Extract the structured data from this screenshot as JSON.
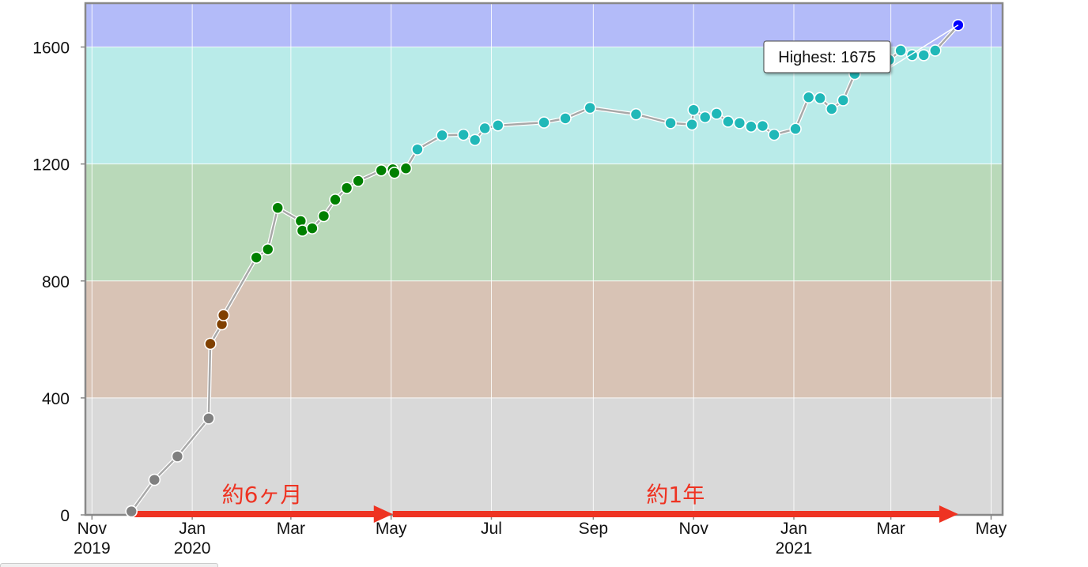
{
  "chart_data": {
    "type": "line",
    "y_ticks": [
      "0",
      "400",
      "800",
      "1200",
      "1600"
    ],
    "ylim": [
      0,
      1750
    ],
    "x_range": [
      "2019-10-28",
      "2021-05-08"
    ],
    "x_ticks": [
      {
        "date": "2019-11-01",
        "label1": "Nov",
        "label2": "2019"
      },
      {
        "date": "2020-01-01",
        "label1": "Jan",
        "label2": "2020"
      },
      {
        "date": "2020-03-01",
        "label1": "Mar",
        "label2": ""
      },
      {
        "date": "2020-05-01",
        "label1": "May",
        "label2": ""
      },
      {
        "date": "2020-07-01",
        "label1": "Jul",
        "label2": ""
      },
      {
        "date": "2020-09-01",
        "label1": "Sep",
        "label2": ""
      },
      {
        "date": "2020-11-01",
        "label1": "Nov",
        "label2": ""
      },
      {
        "date": "2021-01-01",
        "label1": "Jan",
        "label2": "2021"
      },
      {
        "date": "2021-03-01",
        "label1": "Mar",
        "label2": ""
      },
      {
        "date": "2021-05-01",
        "label1": "May",
        "label2": ""
      }
    ],
    "bands": [
      {
        "from": 0,
        "to": 400,
        "color": "#d9d9d9"
      },
      {
        "from": 400,
        "to": 800,
        "color": "#d8c3b5"
      },
      {
        "from": 800,
        "to": 1200,
        "color": "#b9d9b9"
      },
      {
        "from": 1200,
        "to": 1600,
        "color": "#b9ebe9"
      },
      {
        "from": 1600,
        "to": 1750,
        "color": "#b3bbf9"
      }
    ],
    "point_colors": [
      {
        "min": 0,
        "max": 400,
        "color": "#808080"
      },
      {
        "min": 400,
        "max": 800,
        "color": "#804000"
      },
      {
        "min": 800,
        "max": 1200,
        "color": "#008000"
      },
      {
        "min": 1200,
        "max": 1600,
        "color": "#20b8b8"
      },
      {
        "min": 1600,
        "max": 9999,
        "color": "#0000ff"
      }
    ],
    "series": [
      {
        "points": [
          [
            "2019-11-25",
            12
          ],
          [
            "2019-12-09",
            120
          ],
          [
            "2019-12-23",
            200
          ],
          [
            "2020-01-11",
            330
          ],
          [
            "2020-01-12",
            585
          ],
          [
            "2020-01-19",
            652
          ],
          [
            "2020-01-20",
            683
          ],
          [
            "2020-02-09",
            880
          ],
          [
            "2020-02-16",
            908
          ],
          [
            "2020-02-22",
            1050
          ],
          [
            "2020-03-07",
            1005
          ],
          [
            "2020-03-08",
            972
          ],
          [
            "2020-03-14",
            980
          ],
          [
            "2020-03-21",
            1022
          ],
          [
            "2020-03-28",
            1078
          ],
          [
            "2020-04-04",
            1118
          ],
          [
            "2020-04-11",
            1142
          ],
          [
            "2020-04-25",
            1178
          ],
          [
            "2020-05-02",
            1182
          ],
          [
            "2020-05-03",
            1170
          ],
          [
            "2020-05-10",
            1185
          ],
          [
            "2020-05-17",
            1250
          ],
          [
            "2020-06-01",
            1298
          ],
          [
            "2020-06-14",
            1300
          ],
          [
            "2020-06-21",
            1282
          ],
          [
            "2020-06-27",
            1322
          ],
          [
            "2020-07-05",
            1332
          ],
          [
            "2020-08-02",
            1342
          ],
          [
            "2020-08-15",
            1356
          ],
          [
            "2020-08-30",
            1392
          ],
          [
            "2020-09-27",
            1370
          ],
          [
            "2020-10-18",
            1340
          ],
          [
            "2020-10-31",
            1335
          ],
          [
            "2020-11-01",
            1385
          ],
          [
            "2020-11-08",
            1360
          ],
          [
            "2020-11-15",
            1372
          ],
          [
            "2020-11-22",
            1345
          ],
          [
            "2020-11-29",
            1340
          ],
          [
            "2020-12-06",
            1328
          ],
          [
            "2020-12-13",
            1330
          ],
          [
            "2020-12-20",
            1300
          ],
          [
            "2021-01-02",
            1320
          ],
          [
            "2021-01-10",
            1428
          ],
          [
            "2021-01-17",
            1425
          ],
          [
            "2021-01-24",
            1388
          ],
          [
            "2021-01-31",
            1418
          ],
          [
            "2021-02-07",
            1508
          ],
          [
            "2021-02-21",
            1570
          ],
          [
            "2021-02-28",
            1556
          ],
          [
            "2021-03-07",
            1588
          ],
          [
            "2021-03-14",
            1572
          ],
          [
            "2021-03-21",
            1572
          ],
          [
            "2021-03-28",
            1588
          ],
          [
            "2021-04-11",
            1675
          ]
        ]
      }
    ],
    "tooltip": {
      "label": "Highest: 1675",
      "date": "2021-04-11",
      "value": 1675
    },
    "annotations": [
      {
        "text": "約6ヶ月",
        "from": "2019-11-25",
        "to": "2020-05-02"
      },
      {
        "text": "約1年",
        "from": "2020-05-02",
        "to": "2021-04-11"
      }
    ],
    "grid": true,
    "legend": "none"
  }
}
